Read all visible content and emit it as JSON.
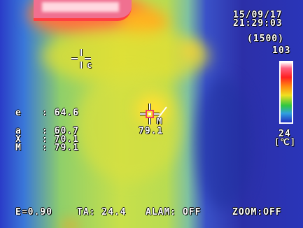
{
  "timestamp": {
    "date": "15/09/17",
    "time": "21:29:03"
  },
  "scale": {
    "range": "(1500)",
    "max": "103",
    "min": "24",
    "unit": "[℃]"
  },
  "readings": {
    "e": {
      "label": "e",
      "value": ": 64.6"
    },
    "a": {
      "label": "a",
      "value": ": 60.7"
    },
    "x": {
      "label": "X",
      "value": ": 70.1"
    },
    "m": {
      "label": "M",
      "value": ": 79.1"
    }
  },
  "cursors": {
    "c_label": "c",
    "m_label": "M",
    "m_value": "79.1"
  },
  "status_bar": {
    "emissivity": "E=0.90",
    "ta": "TA: 24.4",
    "alarm": "ALAM: OFF",
    "zoom": "ZOOM:OFF"
  },
  "colors": {
    "hot_spot": "#f04060",
    "overlay_text": "#ffffff"
  }
}
